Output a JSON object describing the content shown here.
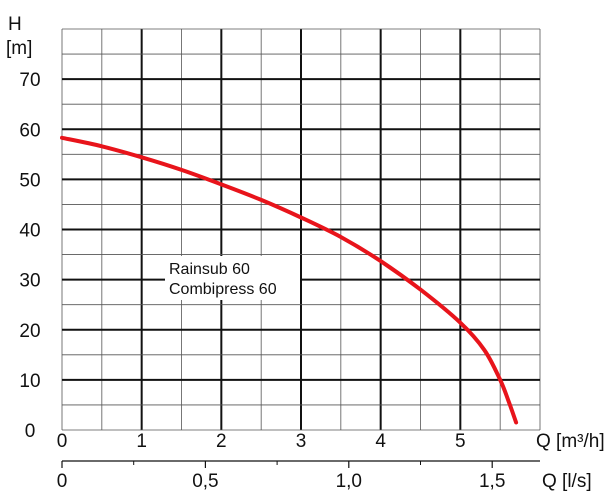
{
  "chart_data": {
    "type": "line",
    "title": "",
    "y_axis": {
      "label_line1": "H",
      "label_line2": "[m]",
      "ylim": [
        0,
        80
      ],
      "ticks": [
        0,
        10,
        20,
        30,
        40,
        50,
        60,
        70
      ],
      "tick_labels": [
        "0",
        "10",
        "20",
        "30",
        "40",
        "50",
        "60",
        "70"
      ],
      "minor_step": 5
    },
    "x_axis": {
      "label": "Q [m³/h]",
      "xlim": [
        0,
        6
      ],
      "ticks": [
        0,
        1,
        2,
        3,
        4,
        5
      ],
      "tick_labels": [
        "0",
        "1",
        "2",
        "3",
        "4",
        "5"
      ],
      "minor_step": 0.5
    },
    "x_axis_secondary": {
      "label": "Q [l/s]",
      "ticks": [
        0,
        0.5,
        1.0,
        1.5
      ],
      "tick_labels": [
        "0",
        "0,5",
        "1,0",
        "1,5"
      ],
      "minor_ticks": [
        0.25,
        0.75,
        1.25
      ]
    },
    "grid": true,
    "series": [
      {
        "name": "Rainsub 60\nCombipress 60",
        "label_lines": [
          "Rainsub 60",
          "Combipress 60"
        ],
        "color": "#e8141b",
        "x": [
          0,
          0.5,
          1.0,
          1.5,
          2.0,
          2.5,
          3.0,
          3.5,
          4.0,
          4.5,
          5.0,
          5.3,
          5.5,
          5.6,
          5.7
        ],
        "y": [
          58.3,
          56.6,
          54.4,
          51.9,
          49.0,
          45.9,
          42.4,
          38.5,
          33.7,
          28.0,
          21.4,
          16.0,
          10.0,
          6.0,
          1.5
        ]
      }
    ]
  }
}
